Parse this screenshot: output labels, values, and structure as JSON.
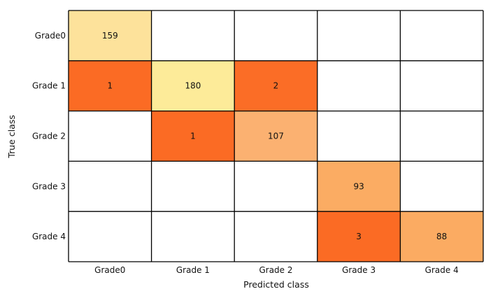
{
  "chart_data": {
    "type": "heatmap",
    "title": "",
    "xlabel": "Predicted class",
    "ylabel": "True class",
    "x_categories": [
      "Grade0",
      "Grade 1",
      "Grade 2",
      "Grade 3",
      "Grade 4"
    ],
    "y_categories": [
      "Grade0",
      "Grade 1",
      "Grade 2",
      "Grade 3",
      "Grade 4"
    ],
    "matrix": [
      [
        159,
        null,
        null,
        null,
        null
      ],
      [
        1,
        180,
        2,
        null,
        null
      ],
      [
        null,
        1,
        107,
        null,
        null
      ],
      [
        null,
        null,
        null,
        93,
        null
      ],
      [
        null,
        null,
        null,
        3,
        88
      ]
    ],
    "colors": {
      "159": "#fde29b",
      "180": "#fdeb99",
      "107": "#fbb171",
      "93": "#fbac63",
      "88": "#fbab62",
      "1": "#fb6b24",
      "2": "#fb6d26",
      "3": "#fb6b24",
      "empty": "#ffffff",
      "grid": "#000000"
    }
  }
}
